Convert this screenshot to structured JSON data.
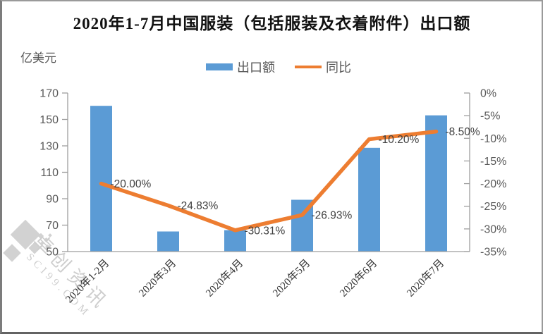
{
  "title": "2020年1-7月中国服装（包括服装及衣着附件）出口额",
  "unit_label": "亿美元",
  "legend": {
    "bar_label": "出口额",
    "line_label": "同比"
  },
  "watermark": {
    "name": "卓创资讯",
    "site": "SCI99.COM"
  },
  "colors": {
    "bar": "#5B9BD5",
    "line": "#ED7D31",
    "axis": "#9e9e9e",
    "tick_text": "#595959",
    "label_text": "#404040",
    "xlabel_text": "#333333"
  },
  "chart_data": {
    "type": "bar",
    "title": "2020年1-7月中国服装（包括服装及衣着附件）出口额",
    "categories": [
      "2020年1-2月",
      "2020年3月",
      "2020年4月",
      "2020年5月",
      "2020年6月",
      "2020年7月"
    ],
    "series": [
      {
        "name": "出口额",
        "type": "bar",
        "axis": "left",
        "unit": "亿美元",
        "values": [
          160.3,
          65.2,
          66.2,
          89.2,
          128.5,
          153.1
        ]
      },
      {
        "name": "同比",
        "type": "line",
        "axis": "right",
        "values": [
          -20.0,
          -24.83,
          -30.31,
          -26.93,
          -10.2,
          -8.5
        ],
        "labels": [
          "-20.00%",
          "-24.83%",
          "-30.31%",
          "-26.93%",
          "-10.20%",
          "-8.50%"
        ]
      }
    ],
    "left_axis": {
      "label": "亿美元",
      "min": 50,
      "max": 170,
      "step": 20,
      "ticks": [
        "170",
        "150",
        "130",
        "110",
        "90",
        "70",
        "50"
      ]
    },
    "right_axis": {
      "min": -35,
      "max": 0,
      "step": 5,
      "ticks": [
        "0%",
        "-5%",
        "-10%",
        "-15%",
        "-20%",
        "-25%",
        "-30%",
        "-35%"
      ]
    },
    "legend_position": "top",
    "grid": false
  }
}
